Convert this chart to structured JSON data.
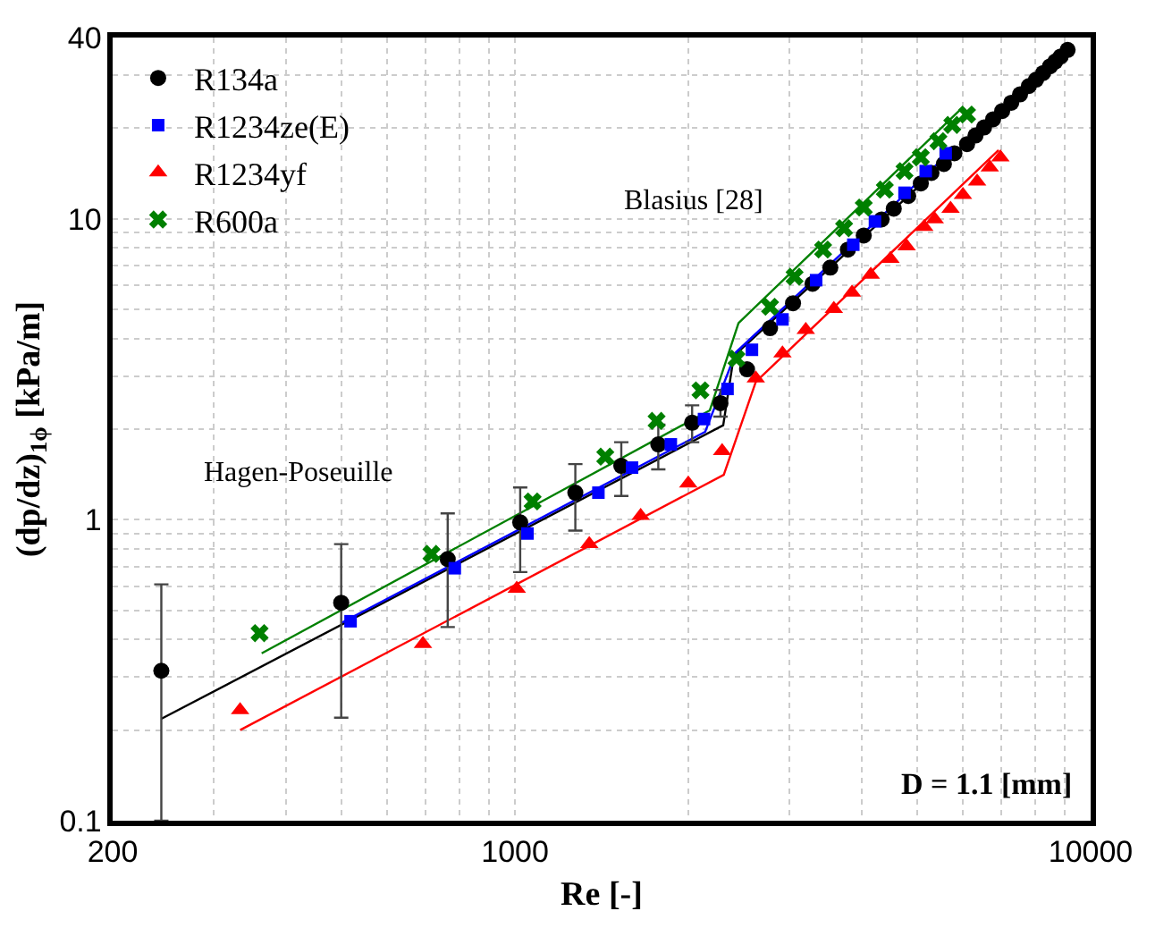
{
  "chart_data": {
    "type": "scatter",
    "xlabel": "Re [-]",
    "ylabel": "(dp/dz)$_{1ϕ}$ [kPa/m]",
    "log": "xy",
    "xlim": [
      200,
      10000
    ],
    "xticks": [
      200,
      1000,
      10000
    ],
    "ylim": [
      0.1,
      40
    ],
    "yticks": [
      0.1,
      1,
      10,
      40
    ],
    "grid": true,
    "legend": "top left",
    "annotations": [
      "Hagen-Poseuille",
      "Blasius [28]",
      "D = 1.1 [mm]"
    ],
    "series": [
      {
        "name": "R134a",
        "color": "#000000",
        "marker": "circle",
        "x": [
          243,
          499,
          764,
          1021,
          1273,
          1530,
          1774,
          2031,
          2275,
          2530,
          2774,
          3041,
          3288,
          3530,
          3787,
          4035,
          4334,
          4550,
          4820,
          5070,
          5290,
          5560,
          5800,
          6100,
          6310,
          6530,
          6770,
          7020,
          7280,
          7540,
          7810,
          8040,
          8270,
          8500,
          8680,
          8870,
          9120
        ],
        "values": [
          0.315,
          0.53,
          0.74,
          0.98,
          1.23,
          1.51,
          1.78,
          2.1,
          2.44,
          3.16,
          4.33,
          5.24,
          6.08,
          6.88,
          7.9,
          8.8,
          9.95,
          10.8,
          11.9,
          13.1,
          14.2,
          15.2,
          16.5,
          17.7,
          18.9,
          20.1,
          21.4,
          22.8,
          24.3,
          25.9,
          27.6,
          29.0,
          30.5,
          32.1,
          33.3,
          34.6,
          36.4
        ],
        "errors": [
          [
            0.1,
            0.61
          ],
          [
            0.22,
            0.83
          ],
          [
            0.44,
            1.05
          ],
          [
            0.67,
            1.28
          ],
          [
            0.92,
            1.53
          ],
          [
            1.2,
            1.81
          ],
          [
            1.47,
            2.07
          ],
          [
            1.81,
            2.4
          ],
          [
            2.2,
            2.7
          ],
          null,
          null,
          null,
          null,
          null,
          null,
          null,
          null,
          null,
          null,
          null,
          null,
          null,
          null,
          null,
          null,
          null,
          null,
          null,
          null,
          null,
          null,
          null,
          null,
          null,
          null,
          null,
          null
        ]
      },
      {
        "name": "R1234ze(E)",
        "color": "#0000ff",
        "marker": "square",
        "x": [
          518,
          786,
          1051,
          1396,
          1597,
          1865,
          2130,
          2340,
          2580,
          2915,
          3335,
          3870,
          4220,
          4750,
          5170,
          5600
        ],
        "values": [
          0.46,
          0.69,
          0.9,
          1.23,
          1.49,
          1.78,
          2.16,
          2.72,
          3.67,
          4.63,
          6.25,
          8.2,
          9.8,
          12.2,
          14.4,
          16.5
        ]
      },
      {
        "name": "R1234yf",
        "color": "#ff0000",
        "marker": "triangle",
        "x": [
          333,
          692,
          1007,
          1346,
          1653,
          2000,
          2290,
          2620,
          2915,
          3200,
          3580,
          3850,
          4150,
          4490,
          4790,
          5140,
          5360,
          5710,
          6000,
          6350,
          6680,
          6970
        ],
        "values": [
          0.233,
          0.387,
          0.59,
          0.83,
          1.03,
          1.32,
          1.69,
          2.95,
          3.57,
          4.27,
          5.02,
          5.69,
          6.52,
          7.36,
          8.1,
          9.4,
          9.96,
          10.8,
          12.0,
          13.3,
          14.8,
          16.0
        ]
      },
      {
        "name": "R600a",
        "color": "#008000",
        "marker": "cross",
        "x": [
          360,
          716,
          1073,
          1435,
          1762,
          2100,
          2425,
          2774,
          3060,
          3430,
          3730,
          4035,
          4390,
          4750,
          5070,
          5440,
          5750,
          6100
        ],
        "values": [
          0.42,
          0.77,
          1.15,
          1.62,
          2.13,
          2.69,
          3.43,
          5.1,
          6.42,
          7.9,
          9.3,
          10.9,
          12.5,
          14.4,
          16.0,
          18.1,
          20.5,
          22.2
        ]
      },
      {
        "type": "line",
        "color": "#000000",
        "x": [
          243,
          2300,
          2400,
          9120
        ],
        "values": [
          0.218,
          2.06,
          3.5,
          36.4
        ]
      },
      {
        "type": "line",
        "color": "#0000ff",
        "x": [
          500,
          2140,
          2420,
          5750
        ],
        "values": [
          0.455,
          1.96,
          3.6,
          16.9
        ]
      },
      {
        "type": "line",
        "color": "#ff0000",
        "x": [
          333,
          2305,
          2620,
          6920
        ],
        "values": [
          0.2,
          1.41,
          2.87,
          16.9
        ]
      },
      {
        "type": "line",
        "color": "#008000",
        "x": [
          363,
          2180,
          2445,
          5960
        ],
        "values": [
          0.36,
          2.31,
          4.5,
          23.2
        ]
      }
    ]
  }
}
